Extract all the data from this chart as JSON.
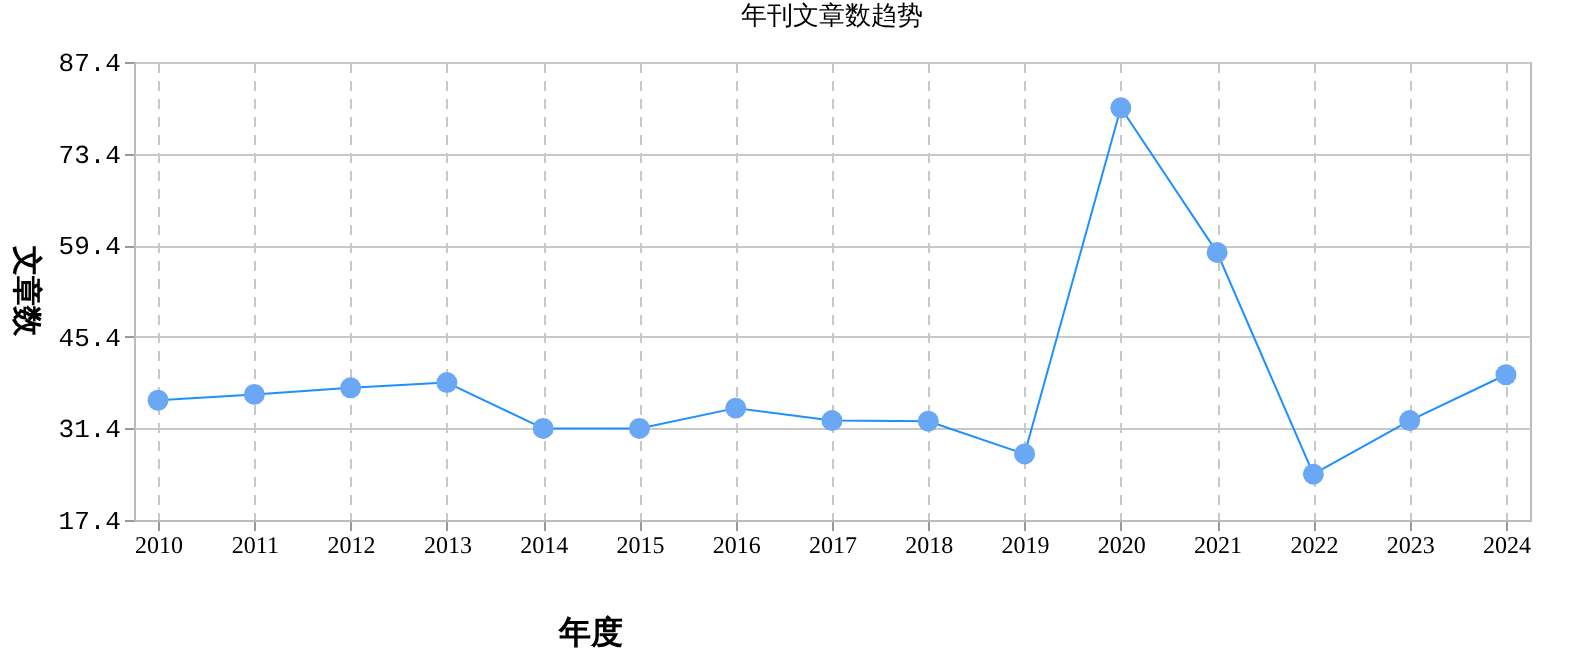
{
  "chart_data": {
    "type": "line",
    "title": "年刊文章数趋势",
    "xlabel": "年度",
    "ylabel": "文章数",
    "categories": [
      "2010",
      "2011",
      "2012",
      "2013",
      "2014",
      "2015",
      "2016",
      "2017",
      "2018",
      "2019",
      "2020",
      "2021",
      "2022",
      "2023",
      "2024"
    ],
    "series": [
      {
        "color": "#1e90ff",
        "values": [
          35.7,
          36.6,
          37.6,
          38.4,
          31.4,
          31.4,
          34.5,
          32.6,
          32.5,
          27.5,
          80.4,
          58.3,
          24.4,
          32.6,
          39.6
        ]
      }
    ],
    "ylim": [
      17.4,
      87.4
    ],
    "yticks": [
      17.4,
      31.4,
      45.4,
      59.4,
      73.4,
      87.4
    ],
    "grid": true,
    "marker": "circle",
    "line_style": "solid"
  }
}
